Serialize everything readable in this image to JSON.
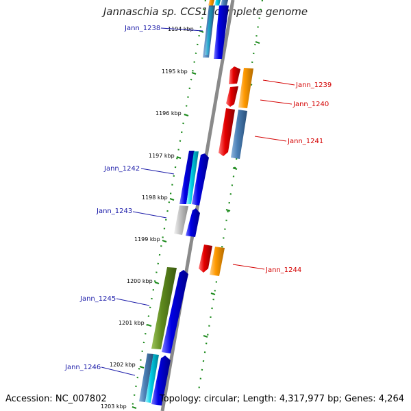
{
  "title": "Jannaschia sp. CCS1, complete genome",
  "accession": "Accession: NC_007802",
  "stats": "Topology: circular; Length: 4,317,977 bp; Genes: 4,264",
  "ticks": [
    {
      "label": "1194 kbp"
    },
    {
      "label": "1195 kbp"
    },
    {
      "label": "1196 kbp"
    },
    {
      "label": "1197 kbp"
    },
    {
      "label": "1198 kbp"
    },
    {
      "label": "1199 kbp"
    },
    {
      "label": "1200 kbp"
    },
    {
      "label": "1201 kbp"
    },
    {
      "label": "1202 kbp"
    },
    {
      "label": "1203 kbp"
    }
  ],
  "genes": {
    "left": [
      {
        "name": "Jann_1238"
      },
      {
        "name": "Jann_1242"
      },
      {
        "name": "Jann_1243"
      },
      {
        "name": "Jann_1245"
      },
      {
        "name": "Jann_1246"
      }
    ],
    "right": [
      {
        "name": "Jann_1239"
      },
      {
        "name": "Jann_1240"
      },
      {
        "name": "Jann_1241"
      },
      {
        "name": "Jann_1244"
      }
    ]
  },
  "colors": {
    "left_label": "#1a1aa8",
    "right_label": "#d40000",
    "axis": "#888888",
    "ticks": "#1c8a1c",
    "blue": "#0000e6",
    "steelblue": "#4a7fb5",
    "red": "#e60000",
    "orange": "#ff9900",
    "olive": "#5f8a1e",
    "cyan": "#00cfe8",
    "gray": "#b0b0b0"
  }
}
